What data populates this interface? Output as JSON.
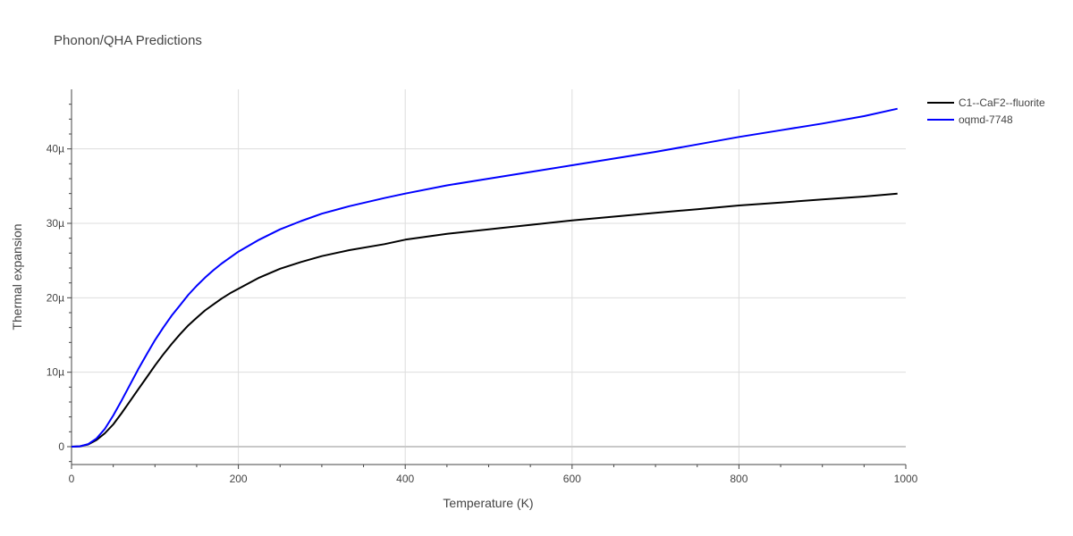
{
  "chart_data": {
    "type": "line",
    "title": "Phonon/QHA Predictions",
    "xlabel": "Temperature (K)",
    "ylabel": "Thermal expansion",
    "xlim": [
      0,
      1000
    ],
    "ylim": [
      -2.4,
      48
    ],
    "x_ticks": [
      0,
      200,
      400,
      600,
      800,
      1000
    ],
    "x_tick_labels": [
      "0",
      "200",
      "400",
      "600",
      "800",
      "1000"
    ],
    "y_ticks": [
      0,
      10,
      20,
      30,
      40
    ],
    "y_tick_labels": [
      "0",
      "10µ",
      "20µ",
      "30µ",
      "40µ"
    ],
    "grid": true,
    "legend_position": "top-right",
    "series": [
      {
        "name": "C1--CaF2--fluorite",
        "color": "#000000",
        "x": [
          0,
          10,
          20,
          30,
          40,
          50,
          60,
          70,
          80,
          90,
          100,
          110,
          120,
          130,
          140,
          150,
          160,
          170,
          180,
          190,
          200,
          225,
          250,
          275,
          300,
          333,
          375,
          400,
          450,
          500,
          550,
          600,
          650,
          700,
          750,
          800,
          850,
          900,
          950,
          990
        ],
        "y": [
          0,
          0.05,
          0.3,
          0.9,
          1.8,
          3.0,
          4.5,
          6.1,
          7.7,
          9.3,
          10.9,
          12.4,
          13.8,
          15.1,
          16.3,
          17.3,
          18.3,
          19.1,
          19.9,
          20.6,
          21.2,
          22.7,
          23.9,
          24.8,
          25.6,
          26.4,
          27.2,
          27.8,
          28.6,
          29.2,
          29.8,
          30.4,
          30.9,
          31.4,
          31.9,
          32.4,
          32.8,
          33.2,
          33.6,
          34.0
        ]
      },
      {
        "name": "oqmd-7748",
        "color": "#0000ff",
        "x": [
          0,
          10,
          20,
          30,
          40,
          50,
          60,
          70,
          80,
          90,
          100,
          110,
          120,
          130,
          140,
          150,
          160,
          170,
          180,
          190,
          200,
          225,
          250,
          275,
          300,
          333,
          375,
          400,
          450,
          500,
          550,
          600,
          650,
          700,
          750,
          800,
          850,
          900,
          950,
          990
        ],
        "y": [
          0,
          0.05,
          0.35,
          1.1,
          2.4,
          4.2,
          6.2,
          8.3,
          10.4,
          12.4,
          14.3,
          16.0,
          17.6,
          19.0,
          20.4,
          21.6,
          22.7,
          23.7,
          24.6,
          25.4,
          26.2,
          27.8,
          29.2,
          30.3,
          31.3,
          32.3,
          33.4,
          34.0,
          35.1,
          36.0,
          36.9,
          37.8,
          38.7,
          39.6,
          40.6,
          41.6,
          42.5,
          43.4,
          44.4,
          45.4
        ]
      }
    ]
  }
}
